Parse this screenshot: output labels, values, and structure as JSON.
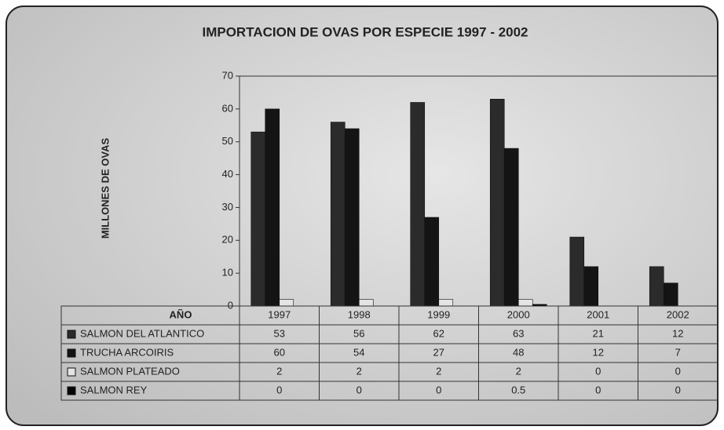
{
  "chart_data": {
    "type": "bar",
    "title": "IMPORTACION DE OVAS POR ESPECIE  1997 - 2002",
    "y_label": "MILLONES DE OVAS",
    "table_header": "AÑO",
    "categories": [
      "1997",
      "1998",
      "1999",
      "2000",
      "2001",
      "2002"
    ],
    "series": [
      {
        "name": "SALMON DEL ATLANTICO",
        "color": "#2b2b2b",
        "values": [
          53,
          56,
          62,
          63,
          21,
          12
        ]
      },
      {
        "name": "TRUCHA ARCOIRIS",
        "color": "#141414",
        "values": [
          60,
          54,
          27,
          48,
          12,
          7
        ]
      },
      {
        "name": "SALMON PLATEADO",
        "color": "#e4e4e4",
        "values": [
          2,
          2,
          2,
          2,
          0,
          0
        ]
      },
      {
        "name": "SALMON REY",
        "color": "#050505",
        "values": [
          0,
          0,
          0,
          0.5,
          0,
          0
        ]
      }
    ],
    "ylim": [
      0,
      70
    ],
    "yticks": [
      0,
      10,
      20,
      30,
      40,
      50,
      60,
      70
    ]
  }
}
